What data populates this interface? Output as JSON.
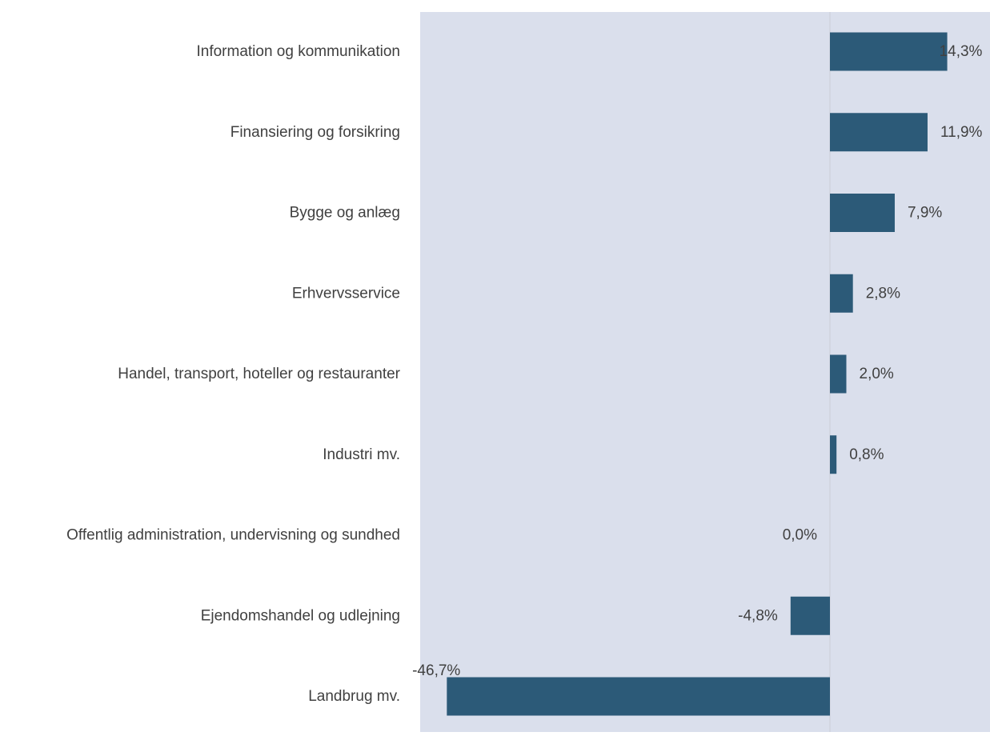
{
  "chart_data": {
    "type": "bar",
    "orientation": "horizontal",
    "categories": [
      "Information og kommunikation",
      "Finansiering og forsikring",
      "Bygge og anlæg",
      "Erhvervsservice",
      "Handel, transport, hoteller og restauranter",
      "Industri mv.",
      "Offentlig administration, undervisning og sundhed",
      "Ejendomshandel og udlejning",
      "Landbrug mv."
    ],
    "values": [
      14.3,
      11.9,
      7.9,
      2.8,
      2.0,
      0.8,
      0.0,
      -4.8,
      -46.7
    ],
    "data_labels": [
      "14,3%",
      "11,9%",
      "7,9%",
      "2,8%",
      "2,0%",
      "0,8%",
      "0,0%",
      "-4,8%",
      "-46,7%"
    ],
    "xlim": [
      -50,
      20
    ],
    "grid": false,
    "legend": "none",
    "colors": {
      "bar": "#2c5a78",
      "plot_background": "#dadfec",
      "zero_line": "#c9ccd6",
      "label_text": "#404040"
    }
  }
}
